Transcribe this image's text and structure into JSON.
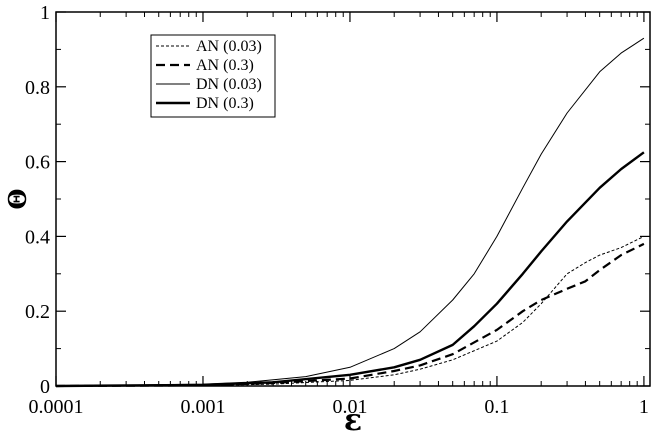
{
  "chart_data": {
    "type": "line",
    "xlabel": "ε",
    "ylabel": "Θ",
    "x_scale": "log",
    "xlim": [
      0.0001,
      1.1
    ],
    "ylim": [
      0,
      1
    ],
    "x_ticks": [
      0.0001,
      0.001,
      0.01,
      0.1,
      1
    ],
    "x_tick_labels": [
      "0.0001",
      "0.001",
      "0.01",
      "0.1",
      "1"
    ],
    "y_ticks": [
      0,
      0.2,
      0.4,
      0.6,
      0.8,
      1
    ],
    "y_tick_labels": [
      "0",
      "0.2",
      "0.4",
      "0.6",
      "0.8",
      "1"
    ],
    "grid": false,
    "legend_position": "top-left",
    "series": [
      {
        "name": "AN (0.03)",
        "style": "thin-dashed",
        "x": [
          0.0001,
          0.001,
          0.003,
          0.01,
          0.02,
          0.03,
          0.05,
          0.1,
          0.15,
          0.2,
          0.3,
          0.4,
          0.5,
          0.7,
          1
        ],
        "values": [
          0,
          0.001,
          0.005,
          0.015,
          0.03,
          0.045,
          0.07,
          0.12,
          0.17,
          0.22,
          0.3,
          0.33,
          0.35,
          0.37,
          0.4
        ]
      },
      {
        "name": "AN (0.3)",
        "style": "thick-dashed",
        "x": [
          0.0001,
          0.001,
          0.003,
          0.01,
          0.02,
          0.03,
          0.05,
          0.1,
          0.15,
          0.2,
          0.3,
          0.4,
          0.5,
          0.7,
          1
        ],
        "values": [
          0,
          0.002,
          0.008,
          0.02,
          0.04,
          0.055,
          0.085,
          0.15,
          0.2,
          0.23,
          0.26,
          0.28,
          0.31,
          0.35,
          0.38
        ]
      },
      {
        "name": "DN (0.03)",
        "style": "thin-solid",
        "x": [
          0.0001,
          0.001,
          0.002,
          0.005,
          0.01,
          0.02,
          0.03,
          0.05,
          0.07,
          0.1,
          0.15,
          0.2,
          0.3,
          0.5,
          0.7,
          1
        ],
        "values": [
          0,
          0.005,
          0.01,
          0.025,
          0.05,
          0.1,
          0.145,
          0.23,
          0.3,
          0.4,
          0.53,
          0.62,
          0.73,
          0.84,
          0.89,
          0.93
        ]
      },
      {
        "name": "DN (0.3)",
        "style": "thick-solid",
        "x": [
          0.0001,
          0.001,
          0.003,
          0.01,
          0.02,
          0.03,
          0.05,
          0.07,
          0.1,
          0.15,
          0.2,
          0.3,
          0.5,
          0.7,
          1
        ],
        "values": [
          0,
          0.003,
          0.01,
          0.03,
          0.05,
          0.07,
          0.11,
          0.16,
          0.22,
          0.3,
          0.36,
          0.44,
          0.53,
          0.58,
          0.625
        ]
      }
    ]
  }
}
